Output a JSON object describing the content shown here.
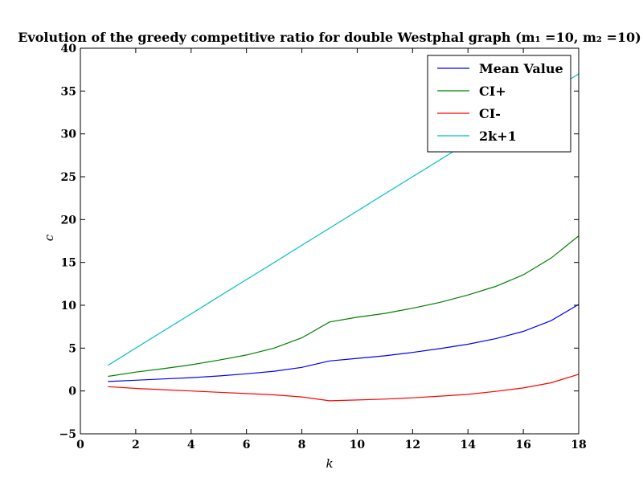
{
  "chart_data": {
    "type": "line",
    "title": "Evolution of the greedy competitive ratio for double Westphal graph (m₁ =10, m₂ =10)",
    "xlabel": "k",
    "ylabel": "c",
    "xlim": [
      0,
      18
    ],
    "ylim": [
      -5,
      40
    ],
    "xticks": [
      "0",
      "2",
      "4",
      "6",
      "8",
      "10",
      "12",
      "14",
      "16",
      "18"
    ],
    "yticks": [
      "−5",
      "0",
      "5",
      "10",
      "15",
      "20",
      "25",
      "30",
      "35",
      "40"
    ],
    "grid": false,
    "legend_position": "top-right",
    "x": [
      1,
      2,
      3,
      4,
      5,
      6,
      7,
      8,
      9,
      10,
      11,
      12,
      13,
      14,
      15,
      16,
      17,
      18
    ],
    "series": [
      {
        "name": "Mean Value",
        "color": "#0000ff",
        "values": [
          1.1,
          1.25,
          1.4,
          1.55,
          1.75,
          2.0,
          2.3,
          2.75,
          3.5,
          3.8,
          4.1,
          4.5,
          4.95,
          5.45,
          6.1,
          6.95,
          8.2,
          10.1
        ]
      },
      {
        "name": "CI+",
        "color": "#008000",
        "values": [
          1.7,
          2.2,
          2.6,
          3.05,
          3.6,
          4.2,
          5.0,
          6.2,
          8.05,
          8.6,
          9.05,
          9.65,
          10.35,
          11.2,
          12.2,
          13.55,
          15.5,
          18.1
        ]
      },
      {
        "name": "CI-",
        "color": "#ff0000",
        "values": [
          0.5,
          0.3,
          0.15,
          0.0,
          -0.15,
          -0.3,
          -0.45,
          -0.7,
          -1.15,
          -1.05,
          -0.95,
          -0.8,
          -0.6,
          -0.4,
          -0.05,
          0.35,
          0.95,
          1.95
        ]
      },
      {
        "name": "2k+1",
        "color": "#00bfbf",
        "values": [
          3,
          5,
          7,
          9,
          11,
          13,
          15,
          17,
          19,
          21,
          23,
          25,
          27,
          29,
          31,
          33,
          35,
          37
        ]
      }
    ]
  }
}
